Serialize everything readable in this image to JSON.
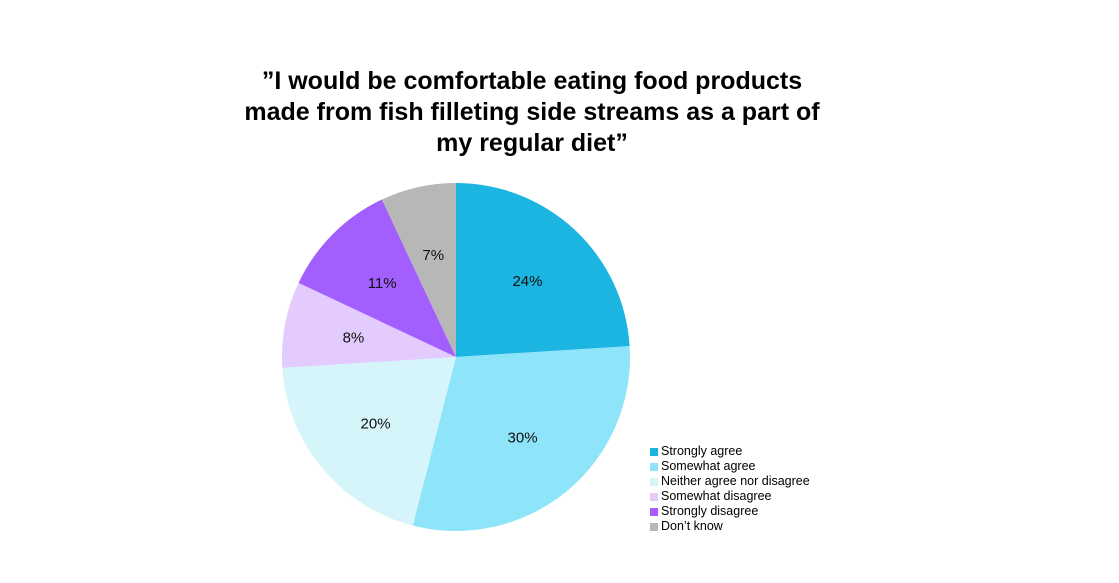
{
  "chart_data": {
    "type": "pie",
    "title": "”I would be comfortable eating food products made from fish filleting side streams as a part of my regular diet”",
    "title_lines": [
      "”I would be comfortable eating food products",
      "made from fish filleting side streams as a part of",
      "my regular diet”"
    ],
    "categories": [
      "Strongly agree",
      "Somewhat agree",
      "Neither agree nor disagree",
      "Somewhat disagree",
      "Strongly disagree",
      "Don't know"
    ],
    "values": [
      24,
      30,
      20,
      8,
      11,
      7
    ],
    "labels": [
      "24%",
      "30%",
      "20%",
      "8%",
      "11%",
      "7%"
    ],
    "colors": [
      "#1cb4e0",
      "#8ee4f8",
      "#d6f5fb",
      "#e3cbfd",
      "#a35efe",
      "#b7b7b7"
    ],
    "start_angle": "12 o'clock",
    "direction": "clockwise",
    "legend_position": "bottom-right",
    "unit": "%"
  },
  "legend": {
    "items": [
      {
        "label": "Strongly agree",
        "color": "#1cb4e0"
      },
      {
        "label": "Somewhat agree",
        "color": "#8ee4f8"
      },
      {
        "label": "Neither agree nor disagree",
        "color": "#d6f5fb"
      },
      {
        "label": "Somewhat disagree",
        "color": "#e3cbfd"
      },
      {
        "label": "Strongly disagree",
        "color": "#a35efe"
      },
      {
        "label": "Don’t know",
        "color": "#b7b7b7"
      }
    ]
  }
}
